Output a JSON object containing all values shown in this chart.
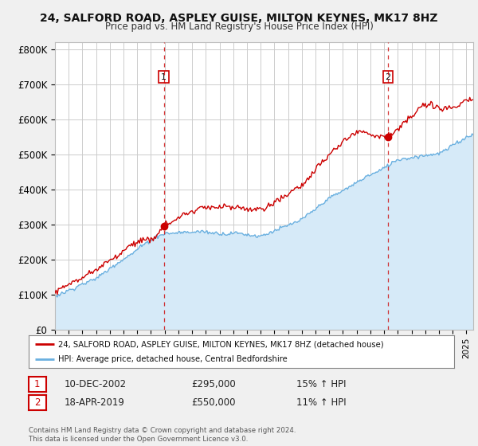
{
  "title1": "24, SALFORD ROAD, ASPLEY GUISE, MILTON KEYNES, MK17 8HZ",
  "title2": "Price paid vs. HM Land Registry's House Price Index (HPI)",
  "ylabel_ticks": [
    "£0",
    "£100K",
    "£200K",
    "£300K",
    "£400K",
    "£500K",
    "£600K",
    "£700K",
    "£800K"
  ],
  "ytick_vals": [
    0,
    100000,
    200000,
    300000,
    400000,
    500000,
    600000,
    700000,
    800000
  ],
  "ylim": [
    0,
    820000
  ],
  "xlim_start": 1995.0,
  "xlim_end": 2025.5,
  "background_color": "#f0f0f0",
  "plot_bg_color": "#ffffff",
  "grid_color": "#cccccc",
  "hpi_line_color": "#6ab0e0",
  "hpi_fill_color": "#d6eaf8",
  "price_color": "#cc0000",
  "dashed_color": "#cc0000",
  "purchase1_x": 2002.94,
  "purchase1_y": 295000,
  "purchase2_x": 2019.29,
  "purchase2_y": 550000,
  "legend_line1": "24, SALFORD ROAD, ASPLEY GUISE, MILTON KEYNES, MK17 8HZ (detached house)",
  "legend_line2": "HPI: Average price, detached house, Central Bedfordshire",
  "annot1_date": "10-DEC-2002",
  "annot1_price": "£295,000",
  "annot1_hpi": "15% ↑ HPI",
  "annot2_date": "18-APR-2019",
  "annot2_price": "£550,000",
  "annot2_hpi": "11% ↑ HPI",
  "footer": "Contains HM Land Registry data © Crown copyright and database right 2024.\nThis data is licensed under the Open Government Licence v3.0."
}
